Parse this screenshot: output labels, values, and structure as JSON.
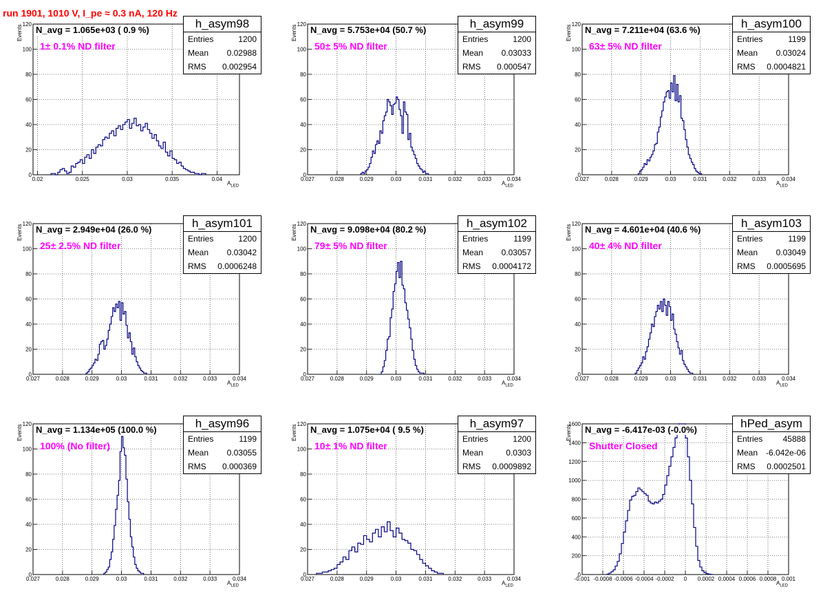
{
  "run_title": "run 1901,  1010 V, I_pe ≈ 0.3 nA, 120 Hz",
  "y_title": "Events",
  "x_title_main": "A",
  "x_title_sub": "LED",
  "stat_labels": {
    "entries": "Entries",
    "mean": "Mean",
    "rms": "RMS"
  },
  "colors": {
    "title": "#ff0000",
    "annotation": "#ff00ff",
    "histogram": "#000080"
  },
  "chart_data": [
    {
      "type": "histogram",
      "name": "h_asym98",
      "navg": "N_avg = 1.065e+03 ( 0.9 %)",
      "filter": "1± 0.1% ND filter",
      "entries": "1200",
      "mean": "0.02988",
      "rms": "0.002954",
      "xlim": [
        0.0195,
        0.0425
      ],
      "ylim": [
        0,
        120
      ],
      "xticks": [
        "0.02",
        "0.025",
        "0.03",
        "0.035",
        "0.04"
      ],
      "yticks": [
        "0",
        "20",
        "40",
        "60",
        "80",
        "100",
        "120"
      ],
      "grid": true,
      "bin_width": 0.00025,
      "bin_start": 0.0215,
      "values": [
        1,
        1,
        0,
        2,
        4,
        5,
        3,
        1,
        2,
        7,
        6,
        9,
        10,
        12,
        9,
        14,
        16,
        13,
        20,
        17,
        22,
        24,
        23,
        28,
        30,
        29,
        33,
        35,
        31,
        37,
        39,
        36,
        40,
        42,
        44,
        37,
        41,
        45,
        39,
        40,
        35,
        38,
        41,
        36,
        33,
        29,
        32,
        27,
        23,
        21,
        26,
        18,
        15,
        19,
        13,
        12,
        9,
        10,
        7,
        5,
        4,
        3,
        2,
        2,
        1,
        1,
        0,
        1,
        1
      ]
    },
    {
      "type": "histogram",
      "name": "h_asym99",
      "navg": "N_avg = 5.753e+04 (50.7 %)",
      "filter": "50± 5% ND filter",
      "entries": "1200",
      "mean": "0.03033",
      "rms": "0.000547",
      "xlim": [
        0.027,
        0.034
      ],
      "ylim": [
        0,
        120
      ],
      "xticks": [
        "0.027",
        "0.028",
        "0.029",
        "0.03",
        "0.031",
        "0.032",
        "0.033",
        "0.034"
      ],
      "yticks": [
        "0",
        "20",
        "40",
        "60",
        "80",
        "100",
        "120"
      ],
      "grid": true,
      "bin_width": 5e-05,
      "bin_start": 0.0288,
      "values": [
        1,
        2,
        1,
        3,
        4,
        6,
        9,
        14,
        19,
        17,
        24,
        27,
        25,
        35,
        33,
        43,
        47,
        50,
        60,
        58,
        55,
        48,
        56,
        57,
        62,
        60,
        52,
        47,
        33,
        58,
        50,
        48,
        28,
        33,
        22,
        19,
        16,
        13,
        9,
        7,
        5,
        4,
        2,
        3,
        1,
        1
      ]
    },
    {
      "type": "histogram",
      "name": "h_asym100",
      "navg": "N_avg = 7.211e+04 (63.6 %)",
      "filter": "63± 5% ND filter",
      "entries": "1199",
      "mean": "0.03024",
      "rms": "0.0004821",
      "xlim": [
        0.027,
        0.034
      ],
      "ylim": [
        0,
        120
      ],
      "xticks": [
        "0.027",
        "0.028",
        "0.029",
        "0.03",
        "0.031",
        "0.032",
        "0.033",
        "0.034"
      ],
      "yticks": [
        "0",
        "20",
        "40",
        "60",
        "80",
        "100",
        "120"
      ],
      "grid": true,
      "bin_width": 5e-05,
      "bin_start": 0.0289,
      "values": [
        1,
        3,
        4,
        6,
        9,
        8,
        12,
        11,
        14,
        16,
        19,
        24,
        25,
        34,
        38,
        46,
        51,
        58,
        62,
        66,
        67,
        61,
        73,
        66,
        79,
        59,
        72,
        58,
        63,
        45,
        43,
        36,
        28,
        22,
        16,
        13,
        10,
        8,
        5,
        3,
        2,
        1,
        1
      ]
    },
    {
      "type": "histogram",
      "name": "h_asym101",
      "navg": "N_avg = 2.949e+04 (26.0 %)",
      "filter": "25± 2.5% ND filter",
      "entries": "1200",
      "mean": "0.03042",
      "rms": "0.0006248",
      "xlim": [
        0.027,
        0.034
      ],
      "ylim": [
        0,
        120
      ],
      "xticks": [
        "0.027",
        "0.028",
        "0.029",
        "0.03",
        "0.031",
        "0.032",
        "0.033",
        "0.034"
      ],
      "yticks": [
        "0",
        "20",
        "40",
        "60",
        "80",
        "100",
        "120"
      ],
      "grid": true,
      "bin_width": 5e-05,
      "bin_start": 0.0288,
      "values": [
        1,
        2,
        4,
        5,
        7,
        9,
        12,
        11,
        16,
        24,
        26,
        27,
        20,
        23,
        28,
        35,
        40,
        46,
        53,
        50,
        56,
        53,
        58,
        43,
        57,
        48,
        50,
        39,
        29,
        33,
        26,
        16,
        21,
        14,
        10,
        7,
        5,
        3,
        2,
        1,
        1
      ]
    },
    {
      "type": "histogram",
      "name": "h_asym102",
      "navg": "N_avg = 9.098e+04 (80.2 %)",
      "filter": "79± 5% ND filter",
      "entries": "1199",
      "mean": "0.03057",
      "rms": "0.0004172",
      "xlim": [
        0.027,
        0.034
      ],
      "ylim": [
        0,
        120
      ],
      "xticks": [
        "0.027",
        "0.028",
        "0.029",
        "0.03",
        "0.031",
        "0.032",
        "0.033",
        "0.034"
      ],
      "yticks": [
        "0",
        "20",
        "40",
        "60",
        "80",
        "100",
        "120"
      ],
      "grid": true,
      "bin_width": 5e-05,
      "bin_start": 0.0295,
      "values": [
        2,
        6,
        11,
        19,
        28,
        30,
        45,
        52,
        66,
        72,
        82,
        89,
        77,
        90,
        71,
        68,
        57,
        51,
        44,
        37,
        28,
        19,
        12,
        7,
        4,
        2,
        1,
        1,
        1
      ]
    },
    {
      "type": "histogram",
      "name": "h_asym103",
      "navg": "N_avg = 4.601e+04 (40.6 %)",
      "filter": "40± 4% ND filter",
      "entries": "1199",
      "mean": "0.03049",
      "rms": "0.0005695",
      "xlim": [
        0.027,
        0.034
      ],
      "ylim": [
        0,
        120
      ],
      "xticks": [
        "0.027",
        "0.028",
        "0.029",
        "0.03",
        "0.031",
        "0.032",
        "0.033",
        "0.034"
      ],
      "yticks": [
        "0",
        "20",
        "40",
        "60",
        "80",
        "100",
        "120"
      ],
      "grid": true,
      "bin_width": 5e-05,
      "bin_start": 0.0288,
      "values": [
        1,
        3,
        5,
        7,
        9,
        14,
        12,
        18,
        22,
        28,
        33,
        40,
        38,
        46,
        50,
        55,
        52,
        58,
        50,
        60,
        55,
        47,
        58,
        54,
        43,
        48,
        36,
        32,
        26,
        21,
        16,
        19,
        11,
        8,
        6,
        4,
        2,
        1,
        1
      ]
    },
    {
      "type": "histogram",
      "name": "h_asym96",
      "navg": "N_avg = 1.134e+05 (100.0 %)",
      "filter": "100% (No filter)",
      "entries": "1199",
      "mean": "0.03055",
      "rms": "0.000369",
      "xlim": [
        0.027,
        0.034
      ],
      "ylim": [
        0,
        120
      ],
      "xticks": [
        "0.027",
        "0.028",
        "0.029",
        "0.03",
        "0.031",
        "0.032",
        "0.033",
        "0.034"
      ],
      "yticks": [
        "0",
        "20",
        "40",
        "60",
        "80",
        "100",
        "120"
      ],
      "grid": true,
      "bin_width": 5e-05,
      "bin_start": 0.0294,
      "values": [
        1,
        2,
        4,
        6,
        12,
        18,
        28,
        39,
        52,
        63,
        75,
        98,
        110,
        101,
        95,
        76,
        58,
        44,
        30,
        22,
        14,
        8,
        5,
        3,
        2,
        1,
        1
      ]
    },
    {
      "type": "histogram",
      "name": "h_asym97",
      "navg": "N_avg = 1.075e+04 ( 9.5 %)",
      "filter": "10± 1% ND filter",
      "entries": "1200",
      "mean": "0.0303",
      "rms": "0.0009892",
      "xlim": [
        0.027,
        0.034
      ],
      "ylim": [
        0,
        120
      ],
      "xticks": [
        "0.027",
        "0.028",
        "0.029",
        "0.03",
        "0.031",
        "0.032",
        "0.033",
        "0.034"
      ],
      "yticks": [
        "0",
        "20",
        "40",
        "60",
        "80",
        "100",
        "120"
      ],
      "grid": true,
      "bin_width": 0.0001,
      "bin_start": 0.0273,
      "values": [
        1,
        1,
        2,
        2,
        3,
        4,
        5,
        8,
        10,
        14,
        12,
        19,
        22,
        18,
        25,
        24,
        31,
        28,
        26,
        33,
        36,
        30,
        38,
        34,
        42,
        35,
        30,
        37,
        33,
        28,
        27,
        25,
        20,
        19,
        16,
        12,
        9,
        7,
        5,
        3,
        2,
        1,
        1
      ]
    },
    {
      "type": "histogram",
      "name": "hPed_asym",
      "navg": "N_avg = -6.417e-03 (-0.0%)",
      "filter": "Shutter Closed",
      "entries": "45888",
      "mean": "-6.042e-06",
      "rms": "0.0002501",
      "xlim": [
        -0.001,
        0.001
      ],
      "ylim": [
        0,
        1600
      ],
      "xticks": [
        "-0.001",
        "-0.0008",
        "-0.0006",
        "-0.0004",
        "-0.0002",
        "0",
        "0.0002",
        "0.0004",
        "0.0006",
        "0.0008",
        "0.001"
      ],
      "yticks": [
        "0",
        "200",
        "400",
        "600",
        "800",
        "1000",
        "1200",
        "1400",
        "1600"
      ],
      "grid": true,
      "bin_width": 2e-05,
      "bin_start": -0.00076,
      "values": [
        5,
        15,
        30,
        50,
        90,
        140,
        220,
        330,
        450,
        570,
        680,
        790,
        830,
        840,
        880,
        920,
        900,
        880,
        860,
        840,
        780,
        760,
        750,
        770,
        760,
        780,
        800,
        850,
        950,
        1050,
        1150,
        1250,
        1350,
        1450,
        1550,
        1620,
        1650,
        1600,
        1450,
        1250,
        1000,
        750,
        500,
        300,
        150,
        80,
        40,
        20,
        10,
        5,
        2
      ]
    }
  ]
}
